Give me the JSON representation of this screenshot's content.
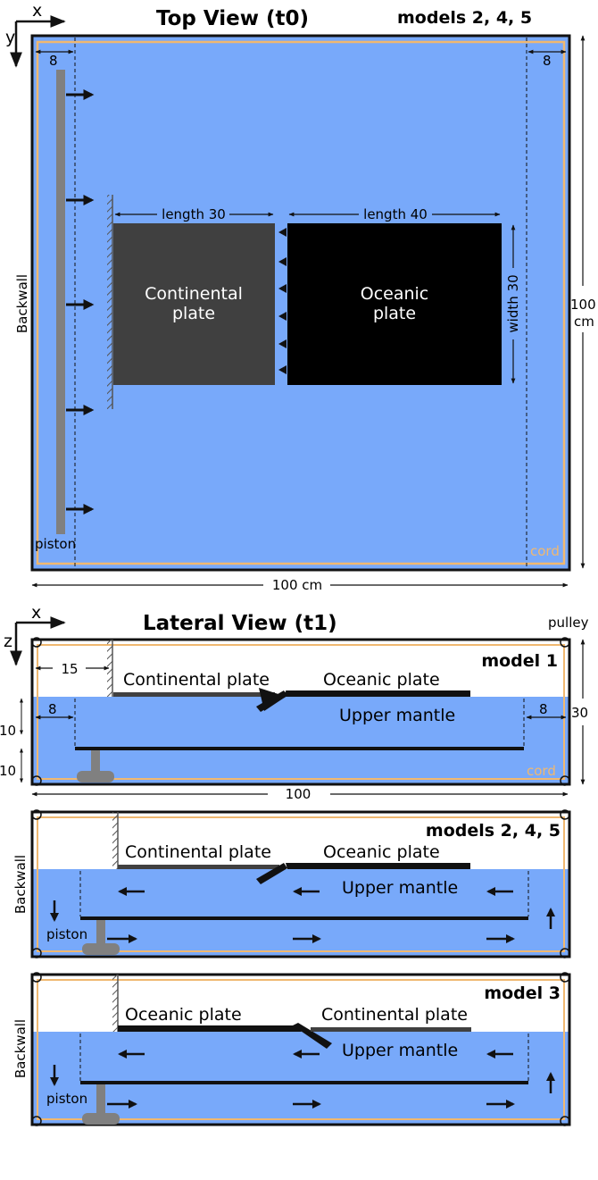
{
  "top_view": {
    "title": "Top View (t0)",
    "models": "models 2, 4, 5",
    "axis_x": "x",
    "axis_y": "y",
    "dim_left": "8",
    "dim_right": "8",
    "backwall": "Backwall",
    "piston": "piston",
    "cord": "cord",
    "length_continental": "length 30",
    "length_oceanic": "length 40",
    "width": "width 30",
    "continental_line1": "Continental",
    "continental_line2": "plate",
    "oceanic_line1": "Oceanic",
    "oceanic_line2": "plate",
    "height_value": "100",
    "height_unit": "cm",
    "width_total": "100 cm"
  },
  "lateral_view": {
    "title": "Lateral View (t1)",
    "axis_x": "x",
    "axis_z": "z",
    "pulley": "pulley",
    "dim_15": "15",
    "dim_8_left": "8",
    "dim_8_right": "8",
    "dim_10_top": "10",
    "dim_10_bottom": "10",
    "dim_30": "30",
    "dim_100": "100",
    "cord": "cord",
    "panels": [
      {
        "model": "model 1",
        "plate_left": "Continental plate",
        "plate_right": "Oceanic plate",
        "mantle": "Upper mantle"
      },
      {
        "model": "models 2, 4, 5",
        "plate_left": "Continental plate",
        "plate_right": "Oceanic plate",
        "mantle": "Upper mantle",
        "backwall": "Backwall",
        "piston": "piston"
      },
      {
        "model": "model 3",
        "plate_left": "Oceanic plate",
        "plate_right": "Continental plate",
        "mantle": "Upper mantle",
        "backwall": "Backwall",
        "piston": "piston"
      }
    ]
  },
  "colors": {
    "mantle_blue": "#78a9fa",
    "continental_gray": "#404040",
    "oceanic_black": "#000000",
    "cord_orange": "#f0b870",
    "piston_gray": "#808080"
  }
}
